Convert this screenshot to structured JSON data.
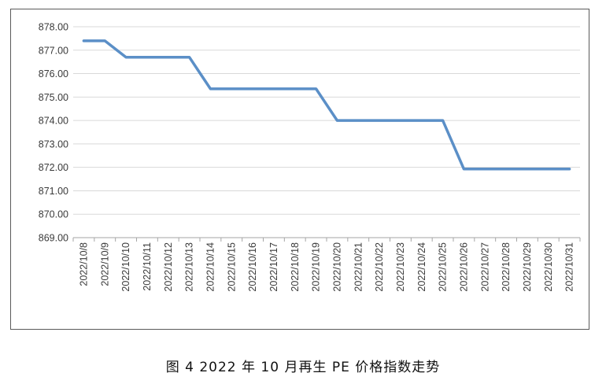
{
  "caption": "图 4  2022 年 10 月再生 PE 价格指数走势",
  "colors": {
    "line": "#5b8fc7",
    "grid": "#d9d9d9",
    "axis": "#a6a6a6",
    "text": "#3a3a3a"
  },
  "chart_data": {
    "type": "line",
    "title": "",
    "xlabel": "",
    "ylabel": "",
    "ylim": [
      869,
      878
    ],
    "ytick_step": 1,
    "ytick_labels": [
      "869.00",
      "870.00",
      "871.00",
      "872.00",
      "873.00",
      "874.00",
      "875.00",
      "876.00",
      "877.00",
      "878.00"
    ],
    "grid": true,
    "legend": "none",
    "x": [
      "2022/10/8",
      "2022/10/9",
      "2022/10/10",
      "2022/10/11",
      "2022/10/12",
      "2022/10/13",
      "2022/10/14",
      "2022/10/15",
      "2022/10/16",
      "2022/10/17",
      "2022/10/18",
      "2022/10/19",
      "2022/10/20",
      "2022/10/21",
      "2022/10/22",
      "2022/10/23",
      "2022/10/24",
      "2022/10/25",
      "2022/10/26",
      "2022/10/27",
      "2022/10/28",
      "2022/10/29",
      "2022/10/30",
      "2022/10/31"
    ],
    "series": [
      {
        "values": [
          877.4,
          877.4,
          876.7,
          876.7,
          876.7,
          876.7,
          875.35,
          875.35,
          875.35,
          875.35,
          875.35,
          875.35,
          874.0,
          874.0,
          874.0,
          874.0,
          874.0,
          874.0,
          871.93,
          871.93,
          871.93,
          871.93,
          871.93,
          871.93
        ]
      }
    ]
  }
}
